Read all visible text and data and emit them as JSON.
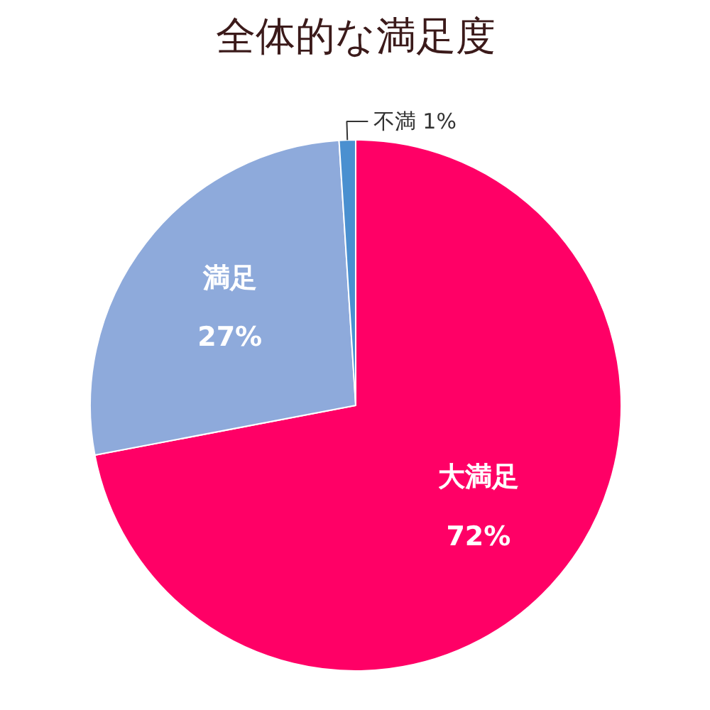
{
  "chart_data": {
    "type": "pie",
    "title": "全体的な満足度",
    "categories": [
      "大満足",
      "満足",
      "不満"
    ],
    "values": [
      72,
      27,
      1
    ],
    "colors": [
      "#ff0066",
      "#8eaadb",
      "#4a90d0"
    ],
    "value_labels": [
      "72%",
      "27%",
      "1%"
    ]
  }
}
